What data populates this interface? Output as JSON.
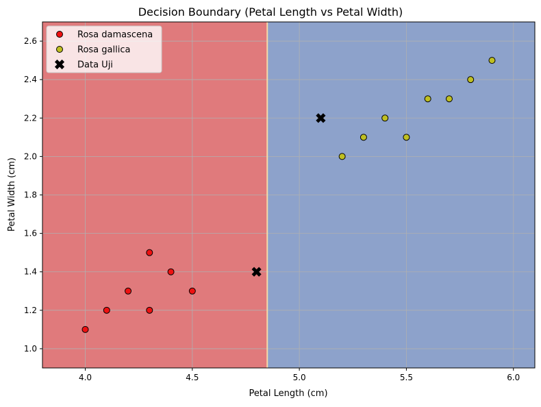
{
  "chart_data": {
    "type": "scatter",
    "title": "Decision Boundary (Petal Length vs Petal Width)",
    "xlabel": "Petal Length (cm)",
    "ylabel": "Petal Width (cm)",
    "xlim": [
      3.8,
      6.1
    ],
    "ylim": [
      0.9,
      2.7
    ],
    "xticks": [
      4.0,
      4.5,
      5.0,
      5.5,
      6.0
    ],
    "yticks": [
      1.0,
      1.2,
      1.4,
      1.6,
      1.8,
      2.0,
      2.2,
      2.4,
      2.6
    ],
    "xtick_labels": [
      "4.0",
      "4.5",
      "5.0",
      "5.5",
      "6.0"
    ],
    "ytick_labels": [
      "1.0",
      "1.2",
      "1.4",
      "1.6",
      "1.8",
      "2.0",
      "2.2",
      "2.4",
      "2.6"
    ],
    "grid": true,
    "legend_position": "top-left",
    "decision_boundary": {
      "x": 4.85,
      "left_region_color": "#e07a7c",
      "right_region_color": "#8da2cb",
      "boundary_color": "#f6d9a8"
    },
    "series": [
      {
        "name": "Rosa damascena",
        "marker": "circle",
        "color": "#ee1111",
        "points": [
          {
            "x": 4.0,
            "y": 1.1
          },
          {
            "x": 4.1,
            "y": 1.2
          },
          {
            "x": 4.2,
            "y": 1.3
          },
          {
            "x": 4.3,
            "y": 1.5
          },
          {
            "x": 4.3,
            "y": 1.2
          },
          {
            "x": 4.4,
            "y": 1.4
          },
          {
            "x": 4.5,
            "y": 1.3
          }
        ]
      },
      {
        "name": "Rosa gallica",
        "marker": "circle",
        "color": "#bfbf22",
        "points": [
          {
            "x": 5.2,
            "y": 2.0
          },
          {
            "x": 5.3,
            "y": 2.1
          },
          {
            "x": 5.4,
            "y": 2.2
          },
          {
            "x": 5.5,
            "y": 2.1
          },
          {
            "x": 5.6,
            "y": 2.3
          },
          {
            "x": 5.7,
            "y": 2.3
          },
          {
            "x": 5.8,
            "y": 2.4
          },
          {
            "x": 5.9,
            "y": 2.5
          }
        ]
      },
      {
        "name": "Data Uji",
        "marker": "x-filled",
        "color": "#000000",
        "points": [
          {
            "x": 4.8,
            "y": 1.4
          },
          {
            "x": 5.1,
            "y": 2.2
          }
        ]
      }
    ]
  }
}
